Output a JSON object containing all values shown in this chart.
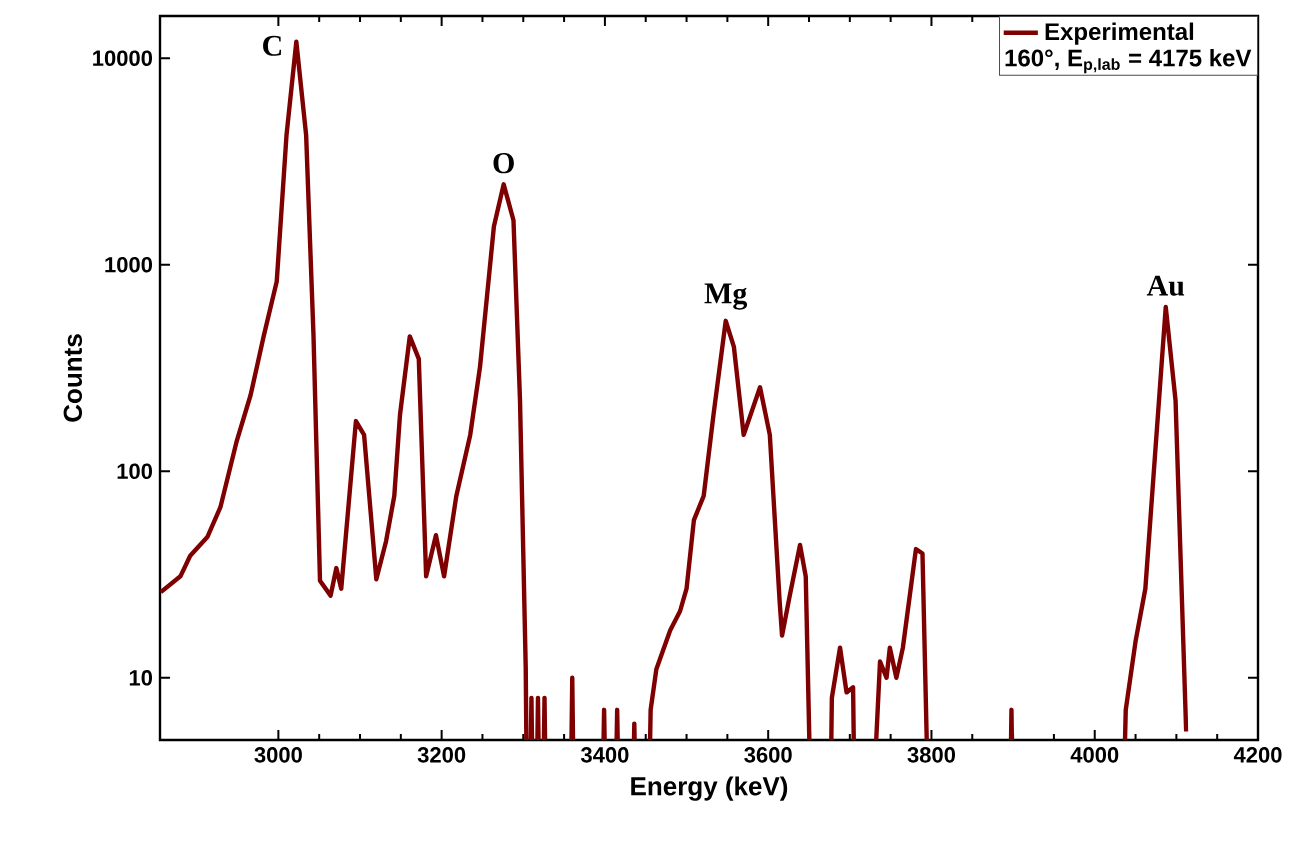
{
  "chart_data": {
    "type": "line",
    "xlabel": "Energy (keV)",
    "ylabel": "Counts",
    "log": "y",
    "xlim": [
      2855,
      4200
    ],
    "xticks": [
      3000,
      3200,
      3400,
      3600,
      3800,
      4000,
      4200
    ],
    "ylim": [
      5,
      16000
    ],
    "yticks": [
      10,
      100,
      1000,
      10000
    ],
    "legend": "top right",
    "marker": "none",
    "line_style": "solid",
    "series": [
      {
        "name": "Experimental",
        "color": "#7f0000",
        "x": [
          2856,
          2880,
          2892,
          2913,
          2929,
          2949,
          2966,
          2982,
          2998,
          3010,
          3022,
          3034,
          3043,
          3051,
          3064,
          3071,
          3077,
          3095,
          3105,
          3120,
          3132,
          3142,
          3149,
          3161,
          3172,
          3181,
          3193,
          3203,
          3218,
          3235,
          3247,
          3264,
          3276,
          3288,
          3296,
          3303,
          3306,
          3310,
          3314,
          3318,
          3322,
          3326,
          3330,
          3356,
          3360,
          3364,
          3394,
          3399,
          3404,
          3410,
          3415,
          3420,
          3431,
          3436,
          3441,
          3451,
          3456,
          3463,
          3480,
          3492,
          3500,
          3509,
          3521,
          3533,
          3548,
          3558,
          3570,
          3590,
          3602,
          3614,
          3617,
          3626,
          3639,
          3646,
          3656,
          3674,
          3678,
          3688,
          3696,
          3704,
          3708,
          3720,
          3737,
          3745,
          3749,
          3757,
          3765,
          3781,
          3789,
          3800,
          3894,
          3898,
          3902,
          4031,
          4038,
          4050,
          4062,
          4087,
          4099,
          4112
        ],
        "values": [
          26,
          31,
          39,
          48,
          67,
          140,
          234,
          450,
          830,
          4250,
          12000,
          4250,
          457,
          29.5,
          25,
          34,
          27,
          175,
          150,
          30,
          46,
          76,
          188,
          450,
          350,
          31,
          49,
          31,
          76,
          150,
          320,
          1530,
          2450,
          1640,
          220,
          11.2,
          null,
          8,
          null,
          8,
          null,
          8,
          null,
          null,
          10,
          null,
          null,
          7,
          null,
          null,
          7,
          null,
          null,
          6,
          null,
          null,
          7,
          11,
          17,
          21,
          27,
          58,
          76,
          188,
          535,
          400,
          150,
          255,
          150,
          23.5,
          16,
          24.5,
          44,
          31,
          null,
          null,
          8,
          14,
          8.5,
          9,
          null,
          null,
          12,
          10,
          14,
          10,
          14,
          42,
          40,
          null,
          null,
          7,
          null,
          null,
          7,
          15,
          27,
          625,
          220,
          5.5
        ]
      }
    ],
    "annotations": [
      {
        "text": "C",
        "x": 3022,
        "y": 12000
      },
      {
        "text": "O",
        "x": 3276,
        "y": 2450
      },
      {
        "text": "Mg",
        "x": 3548,
        "y": 535
      },
      {
        "text": "Au",
        "x": 4087,
        "y": 625
      },
      "160°, E$_{p,lab}$ = 4175 keV"
    ]
  }
}
